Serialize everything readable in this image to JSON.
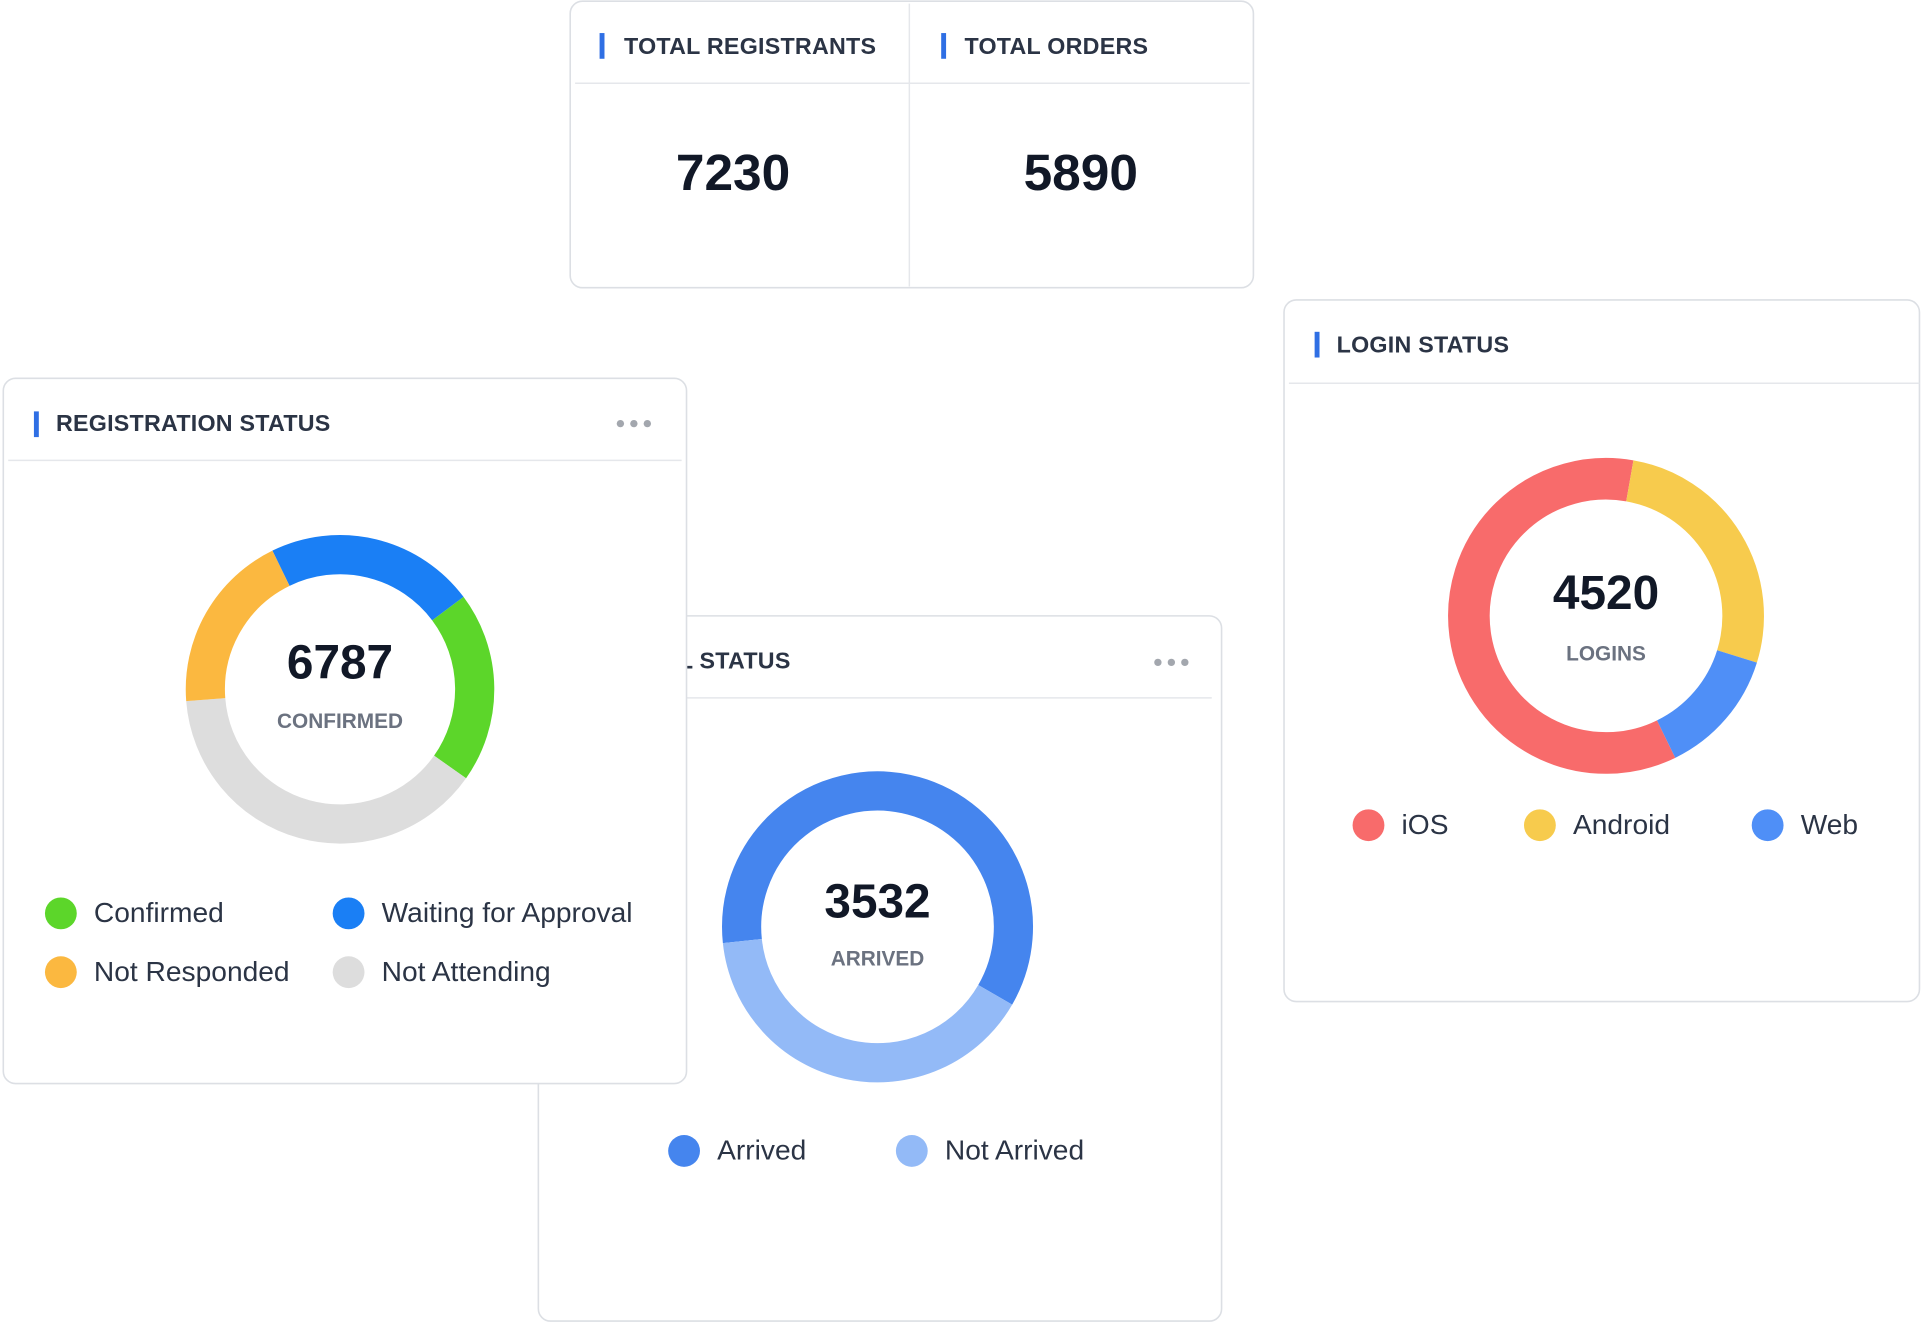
{
  "stats": [
    {
      "title": "TOTAL REGISTRANTS",
      "value": 7230
    },
    {
      "title": "TOTAL ORDERS",
      "value": 5890
    }
  ],
  "registration_status": {
    "title": "REGISTRATION STATUS",
    "center_value": 6787,
    "center_label": "CONFIRMED",
    "segments": [
      {
        "name": "Confirmed",
        "color": "#5cd62a",
        "value": 20
      },
      {
        "name": "Waiting for Approval",
        "color": "#1a7ff5",
        "value": 22
      },
      {
        "name": "Not Responded",
        "color": "#fbb840",
        "value": 19
      },
      {
        "name": "Not Attending",
        "color": "#dddddd",
        "value": 39
      }
    ]
  },
  "arrival_status": {
    "title": "ARRIVAL STATUS",
    "center_value": 3532,
    "center_label": "ARRIVED",
    "segments": [
      {
        "name": "Arrived",
        "color": "#4585ee",
        "value": 60
      },
      {
        "name": "Not Arrived",
        "color": "#93baf7",
        "value": 40
      }
    ]
  },
  "login_status": {
    "title": "LOGIN STATUS",
    "center_value": 4520,
    "center_label": "LOGINS",
    "segments": [
      {
        "name": "iOS",
        "color": "#f86b6b",
        "value": 60
      },
      {
        "name": "Android",
        "color": "#f7cb4d",
        "value": 27
      },
      {
        "name": "Web",
        "color": "#4f8ff7",
        "value": 13
      }
    ]
  }
}
